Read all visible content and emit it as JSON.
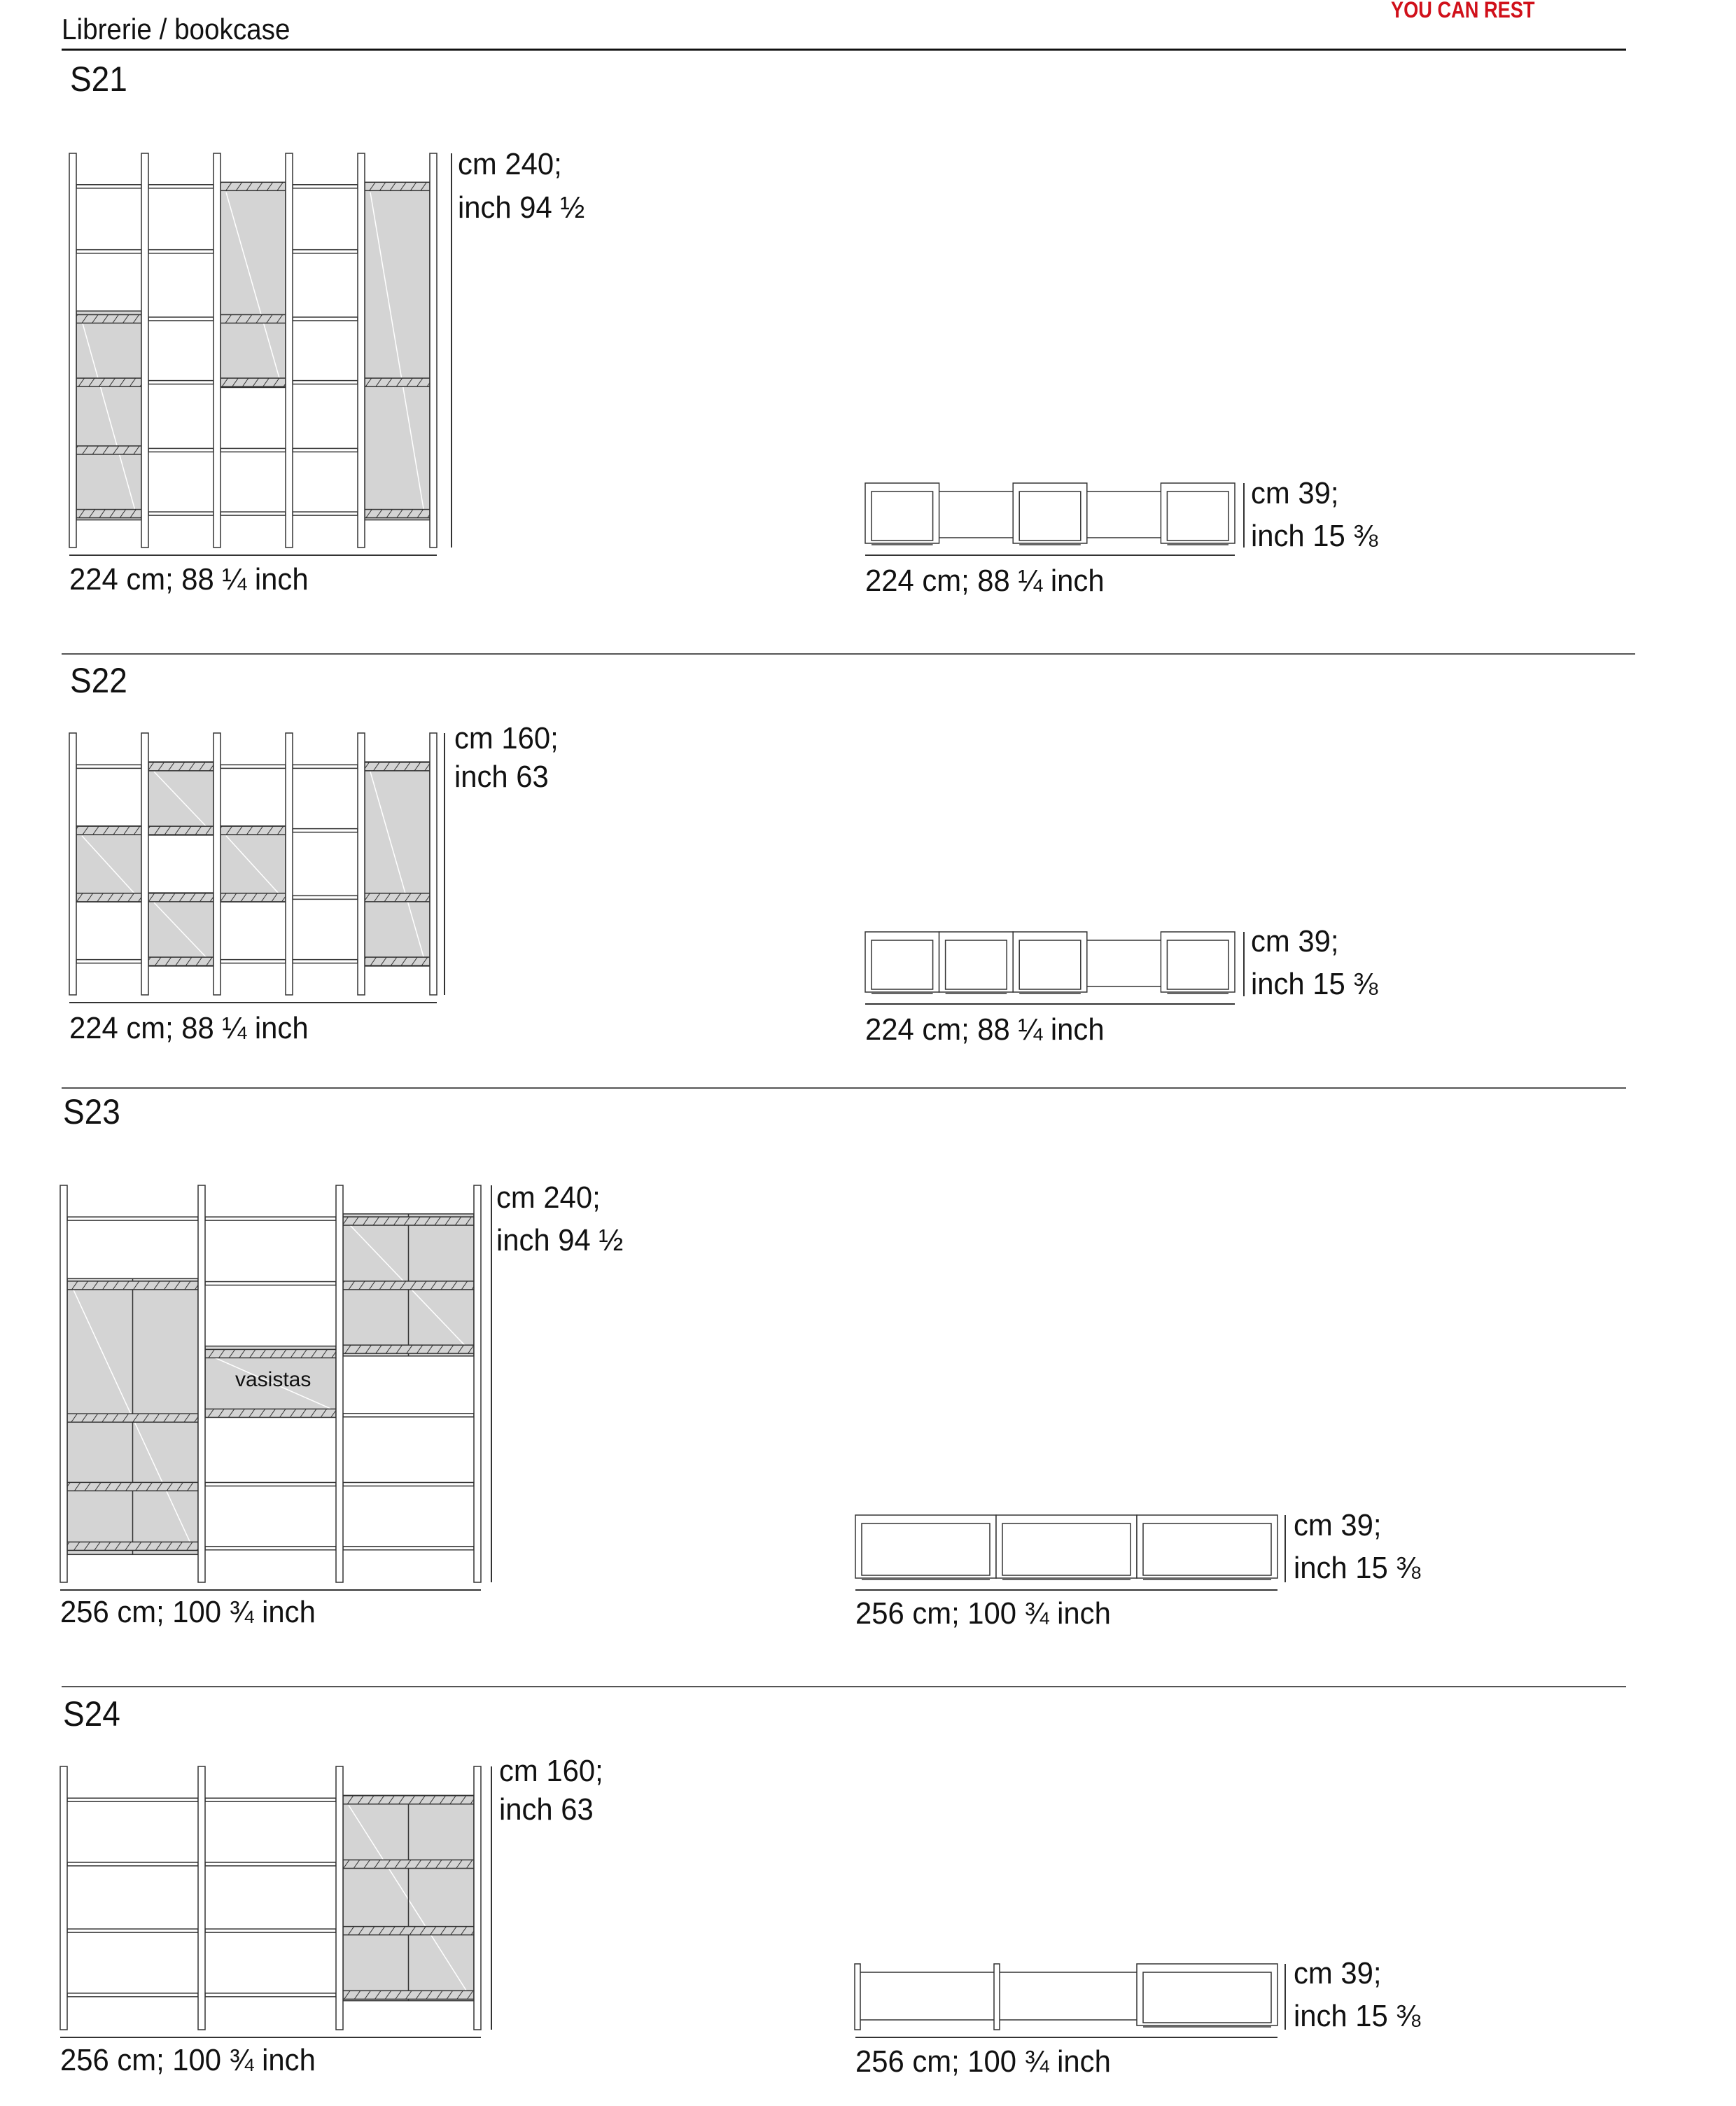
{
  "header": {
    "title": "Librerie / bookcase",
    "brand": "YOU CAN REST"
  },
  "colors": {
    "brand": "#d0101a",
    "glass": "#d4d4d4",
    "line": "#333333",
    "rule": "#555555"
  },
  "sections": [
    {
      "code": "S21",
      "elevation": {
        "height_cm": "cm 240;",
        "height_inch": "inch 94 ½",
        "width": "224 cm; 88 ¼ inch"
      },
      "plan": {
        "depth_cm": "cm 39;",
        "depth_inch": "inch 15 ⅜",
        "width": "224 cm; 88 ¼ inch"
      }
    },
    {
      "code": "S22",
      "elevation": {
        "height_cm": "cm 160;",
        "height_inch": "inch 63",
        "width": "224 cm; 88 ¼ inch"
      },
      "plan": {
        "depth_cm": "cm 39;",
        "depth_inch": "inch 15 ⅜",
        "width": "224 cm; 88 ¼ inch"
      }
    },
    {
      "code": "S23",
      "elevation": {
        "height_cm": "cm 240;",
        "height_inch": "inch 94 ½",
        "width": "256 cm; 100 ¾ inch",
        "vasistas_label": "vasistas"
      },
      "plan": {
        "depth_cm": "cm 39;",
        "depth_inch": "inch 15 ⅜",
        "width": "256 cm; 100 ¾ inch"
      }
    },
    {
      "code": "S24",
      "elevation": {
        "height_cm": "cm 160;",
        "height_inch": "inch 63",
        "width": "256 cm; 100 ¾ inch"
      },
      "plan": {
        "depth_cm": "cm 39;",
        "depth_inch": "inch 15 ⅜",
        "width": "256 cm; 100 ¾ inch"
      }
    }
  ]
}
